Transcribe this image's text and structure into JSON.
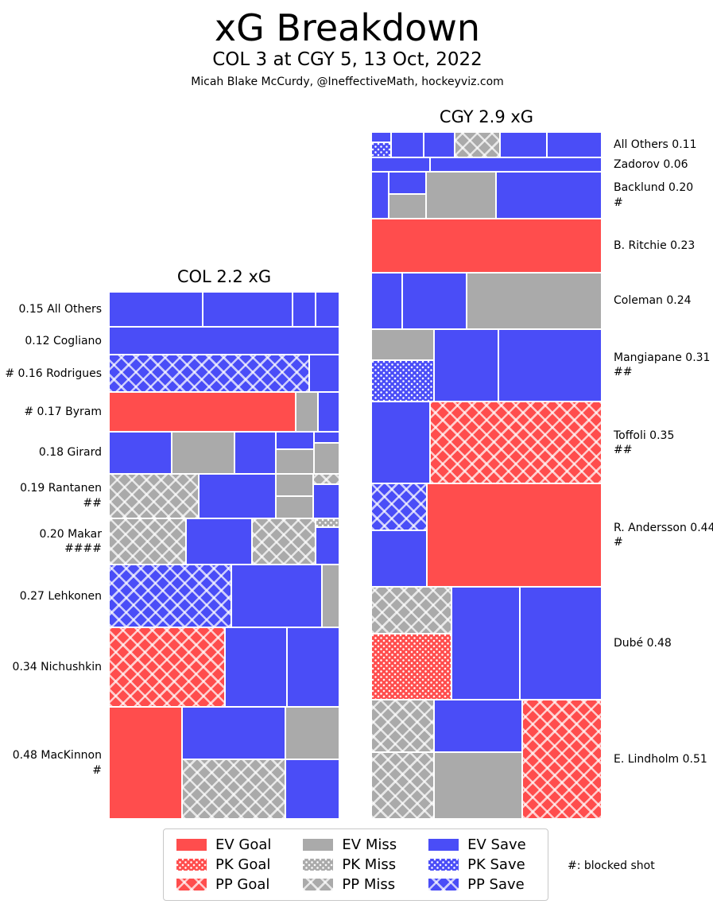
{
  "title": "xG Breakdown",
  "subtitle": "COL 3 at CGY 5, 13 Oct, 2022",
  "credit": "Micah Blake McCurdy, @IneffectiveMath, hockeyviz.com",
  "chart_data": {
    "type": "mosaic",
    "title": "xG Breakdown",
    "subtitle": "COL 3 at CGY 5, 13 Oct, 2022",
    "credit": "Micah Blake McCurdy, @IneffectiveMath, hockeyviz.com",
    "colors": {
      "goal": "#FF4D4D",
      "miss": "#AAAAAA",
      "save": "#4A4DF7"
    },
    "legend": {
      "note": "#: blocked shot",
      "items": [
        {
          "label": "EV Goal",
          "type": "EV Goal"
        },
        {
          "label": "PK Goal",
          "type": "PK Goal"
        },
        {
          "label": "PP Goal",
          "type": "PP Goal"
        },
        {
          "label": "EV Miss",
          "type": "EV Miss"
        },
        {
          "label": "PK Miss",
          "type": "PK Miss"
        },
        {
          "label": "PP Miss",
          "type": "PP Miss"
        },
        {
          "label": "EV Save",
          "type": "EV Save"
        },
        {
          "label": "PK Save",
          "type": "PK Save"
        },
        {
          "label": "PP Save",
          "type": "PP Save"
        }
      ]
    },
    "teams": [
      {
        "id": "COL",
        "header": "COL 2.2 xG",
        "total_xg_label": 2.2,
        "players": [
          {
            "label": "0.15 All Others",
            "hashes": "",
            "xg": 0.15,
            "blocks": [
              {
                "t": "EV Save",
                "w": 0.406
              },
              {
                "t": "EV Save",
                "w": 0.391
              },
              {
                "t": "EV Save",
                "w": 0.098
              },
              {
                "t": "EV Save",
                "w": 0.105
              }
            ]
          },
          {
            "label": "0.12 Cogliano",
            "hashes": "",
            "xg": 0.12,
            "blocks": [
              {
                "t": "EV Save",
                "w": 1.0
              }
            ]
          },
          {
            "label": "# 0.16 Rodrigues",
            "hashes": "",
            "xg": 0.16,
            "blocks": [
              {
                "t": "PP Save",
                "w": 0.868
              },
              {
                "t": "EV Save",
                "w": 0.132
              }
            ]
          },
          {
            "label": "# 0.17 Byram",
            "hashes": "",
            "xg": 0.17,
            "blocks": [
              {
                "t": "EV Goal",
                "w": 0.812
              },
              {
                "t": "EV Miss",
                "w": 0.096
              },
              {
                "t": "EV Save",
                "w": 0.092
              }
            ]
          },
          {
            "label": "0.18 Girard",
            "hashes": "",
            "xg": 0.18,
            "blocks": [
              {
                "t": "EV Save",
                "w": 0.273
              },
              {
                "t": "EV Miss",
                "w": 0.273
              },
              {
                "t": "EV Save",
                "w": 0.177
              },
              {
                "w": 0.167,
                "stack": [
                  {
                    "t": "EV Save",
                    "h": 0.42
                  },
                  {
                    "t": "EV Miss",
                    "h": 0.58
                  }
                ]
              },
              {
                "w": 0.11,
                "stack": [
                  {
                    "t": "EV Save",
                    "h": 0.27
                  },
                  {
                    "t": "EV Miss",
                    "h": 0.73
                  }
                ]
              }
            ]
          },
          {
            "label": "0.19 Rantanen",
            "hashes": "##",
            "xg": 0.19,
            "blocks": [
              {
                "t": "PP Miss",
                "w": 0.391
              },
              {
                "t": "EV Save",
                "w": 0.333
              },
              {
                "w": 0.163,
                "stack": [
                  {
                    "t": "EV Miss",
                    "h": 0.5
                  },
                  {
                    "t": "EV Miss",
                    "h": 0.5
                  }
                ]
              },
              {
                "w": 0.113,
                "stack": [
                  {
                    "t": "PP Miss",
                    "h": 0.24
                  },
                  {
                    "t": "EV Save",
                    "h": 0.76
                  }
                ]
              }
            ]
          },
          {
            "label": "0.20 Makar",
            "hashes": "####",
            "xg": 0.2,
            "blocks": [
              {
                "t": "PP Miss",
                "w": 0.333
              },
              {
                "t": "EV Save",
                "w": 0.287
              },
              {
                "t": "PP Miss",
                "w": 0.276
              },
              {
                "w": 0.104,
                "stack": [
                  {
                    "t": "PK Miss",
                    "h": 0.2
                  },
                  {
                    "t": "EV Save",
                    "h": 0.8
                  }
                ]
              }
            ]
          },
          {
            "label": "0.27 Lehkonen",
            "hashes": "",
            "xg": 0.27,
            "blocks": [
              {
                "t": "PP Save",
                "w": 0.532
              },
              {
                "t": "EV Save",
                "w": 0.393
              },
              {
                "t": "EV Miss",
                "w": 0.075
              }
            ]
          },
          {
            "label": "0.34 Nichushkin",
            "hashes": "",
            "xg": 0.34,
            "blocks": [
              {
                "t": "PP Goal",
                "w": 0.504
              },
              {
                "t": "EV Save",
                "w": 0.269
              },
              {
                "t": "EV Save",
                "w": 0.227
              }
            ]
          },
          {
            "label": "0.48 MacKinnon",
            "hashes": "#",
            "xg": 0.48,
            "blocks": [
              {
                "t": "EV Goal",
                "w": 0.316
              },
              {
                "w": 0.448,
                "stack": [
                  {
                    "t": "EV Save",
                    "h": 0.47
                  },
                  {
                    "t": "PP Miss",
                    "h": 0.53
                  }
                ]
              },
              {
                "w": 0.236,
                "stack": [
                  {
                    "t": "EV Miss",
                    "h": 0.47
                  },
                  {
                    "t": "EV Save",
                    "h": 0.53
                  }
                ]
              }
            ]
          }
        ]
      },
      {
        "id": "CGY",
        "header": "CGY 2.9 xG",
        "total_xg_label": 2.9,
        "players": [
          {
            "label": "All Others 0.11",
            "hashes": "",
            "xg": 0.11,
            "blocks": [
              {
                "w": 0.085,
                "stack": [
                  {
                    "t": "EV Save",
                    "h": 0.4
                  },
                  {
                    "t": "PK Save",
                    "h": 0.6
                  }
                ]
              },
              {
                "t": "EV Save",
                "w": 0.141
              },
              {
                "t": "EV Save",
                "w": 0.137
              },
              {
                "t": "PP Miss",
                "w": 0.194
              },
              {
                "t": "EV Save",
                "w": 0.205
              },
              {
                "t": "EV Save",
                "w": 0.238
              }
            ]
          },
          {
            "label": "Zadorov 0.06",
            "hashes": "",
            "xg": 0.06,
            "blocks": [
              {
                "t": "EV Save",
                "w": 0.256
              },
              {
                "t": "EV Save",
                "w": 0.744
              }
            ]
          },
          {
            "label": "Backlund 0.20",
            "hashes": "#",
            "xg": 0.2,
            "blocks": [
              {
                "t": "EV Save",
                "w": 0.076
              },
              {
                "w": 0.163,
                "stack": [
                  {
                    "t": "EV Save",
                    "h": 0.475
                  },
                  {
                    "t": "EV Miss",
                    "h": 0.525
                  }
                ]
              },
              {
                "t": "EV Miss",
                "w": 0.302
              },
              {
                "t": "EV Save",
                "w": 0.459
              }
            ]
          },
          {
            "label": "B. Ritchie 0.23",
            "hashes": "",
            "xg": 0.23,
            "blocks": [
              {
                "t": "EV Goal",
                "w": 1.0
              }
            ]
          },
          {
            "label": "Coleman 0.24",
            "hashes": "",
            "xg": 0.24,
            "blocks": [
              {
                "t": "EV Save",
                "w": 0.136
              },
              {
                "t": "EV Save",
                "w": 0.278
              },
              {
                "t": "EV Miss",
                "w": 0.586
              }
            ]
          },
          {
            "label": "Mangiapane 0.31",
            "hashes": "##",
            "xg": 0.31,
            "blocks": [
              {
                "w": 0.271,
                "stack": [
                  {
                    "t": "EV Miss",
                    "h": 0.43
                  },
                  {
                    "t": "PK Save",
                    "h": 0.57
                  }
                ]
              },
              {
                "t": "EV Save",
                "w": 0.282
              },
              {
                "t": "EV Save",
                "w": 0.447
              }
            ]
          },
          {
            "label": "Toffoli 0.35",
            "hashes": "##",
            "xg": 0.35,
            "blocks": [
              {
                "t": "EV Save",
                "w": 0.254
              },
              {
                "t": "PP Goal",
                "w": 0.746
              }
            ]
          },
          {
            "label": "R. Andersson 0.44",
            "hashes": "#",
            "xg": 0.44,
            "blocks": [
              {
                "w": 0.24,
                "stack": [
                  {
                    "t": "PP Save",
                    "h": 0.45
                  },
                  {
                    "t": "EV Save",
                    "h": 0.55
                  }
                ]
              },
              {
                "t": "EV Goal",
                "w": 0.76
              }
            ]
          },
          {
            "label": "Dubé 0.48",
            "hashes": "",
            "xg": 0.48,
            "blocks": [
              {
                "w": 0.348,
                "stack": [
                  {
                    "t": "PP Miss",
                    "h": 0.418
                  },
                  {
                    "t": "PK Goal",
                    "h": 0.582
                  }
                ]
              },
              {
                "t": "EV Save",
                "w": 0.298
              },
              {
                "t": "EV Save",
                "w": 0.354
              }
            ]
          },
          {
            "label": "E. Lindholm 0.51",
            "hashes": "",
            "xg": 0.51,
            "blocks": [
              {
                "w": 0.271,
                "stack": [
                  {
                    "t": "PP Miss",
                    "h": 0.443
                  },
                  {
                    "t": "PP Miss",
                    "h": 0.557
                  }
                ]
              },
              {
                "w": 0.384,
                "stack": [
                  {
                    "t": "EV Save",
                    "h": 0.44
                  },
                  {
                    "t": "EV Miss",
                    "h": 0.56
                  }
                ]
              },
              {
                "t": "PP Goal",
                "w": 0.345
              }
            ]
          }
        ]
      }
    ]
  }
}
